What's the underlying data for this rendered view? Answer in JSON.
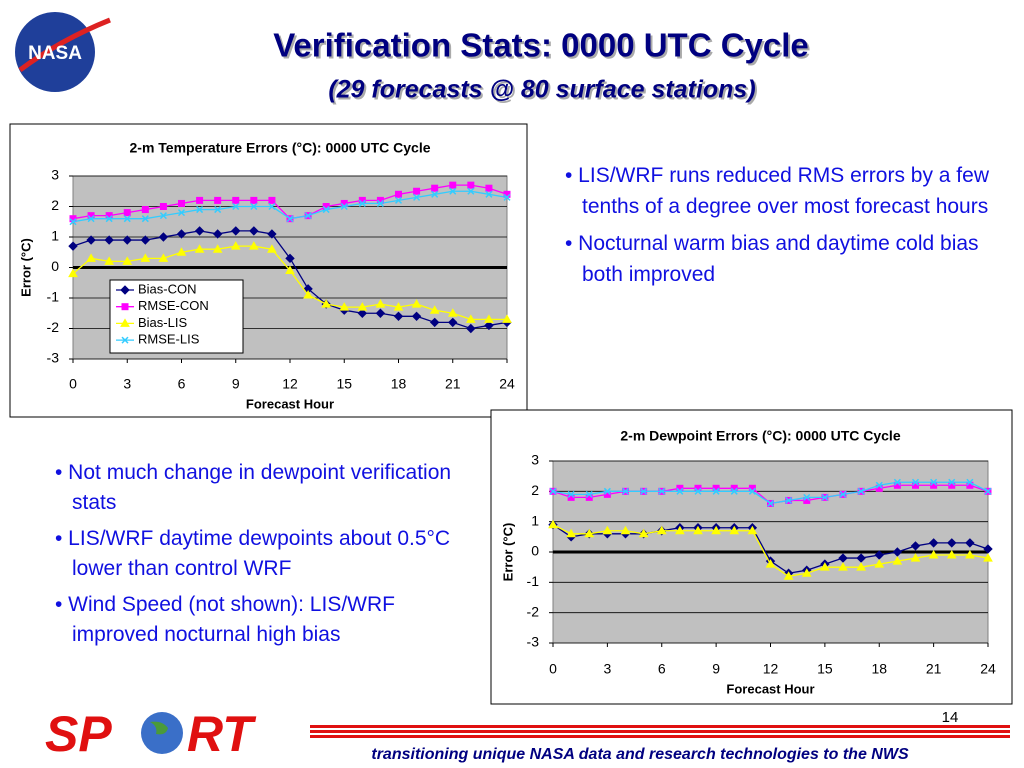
{
  "slide": {
    "nasa_logo": "NASA",
    "title": "Verification Stats: 0000 UTC Cycle",
    "subtitle": "(29 forecasts @ 80 surface stations)",
    "bullets_top": [
      "• LIS/WRF runs reduced RMS errors by a few tenths of a degree over most forecast hours",
      "• Nocturnal warm bias and daytime cold bias both improved"
    ],
    "bullets_bottom": [
      "• Not much change in dewpoint verification stats",
      "• LIS/WRF daytime dewpoints about 0.5°C lower than control WRF",
      "• Wind Speed (not shown): LIS/WRF improved nocturnal high bias"
    ],
    "page_number": "14",
    "sport_logo": [
      "SP",
      "RT"
    ],
    "footer": "transitioning unique NASA data and research technologies to the NWS"
  },
  "chart_data": [
    {
      "type": "line",
      "title": "2-m Temperature Errors (°C): 0000 UTC Cycle",
      "x_label": "Forecast Hour",
      "y_label": "Error (°C)",
      "x": [
        0,
        1,
        2,
        3,
        4,
        5,
        6,
        7,
        8,
        9,
        10,
        11,
        12,
        13,
        14,
        15,
        16,
        17,
        18,
        19,
        20,
        21,
        22,
        23,
        24
      ],
      "xlim": [
        0,
        24
      ],
      "xticks": [
        0,
        3,
        6,
        9,
        12,
        15,
        18,
        21,
        24
      ],
      "ylim": [
        -3,
        3
      ],
      "yticks": [
        -3,
        -2,
        -1,
        0,
        1,
        2,
        3
      ],
      "grid": true,
      "legend": "lower left",
      "series": [
        {
          "name": "Bias-CON",
          "color": "#000080",
          "marker": "diamond",
          "values": [
            0.7,
            0.9,
            0.9,
            0.9,
            0.9,
            1.0,
            1.1,
            1.2,
            1.1,
            1.2,
            1.2,
            1.1,
            0.3,
            -0.7,
            -1.2,
            -1.4,
            -1.5,
            -1.5,
            -1.6,
            -1.6,
            -1.8,
            -1.8,
            -2.0,
            -1.9,
            -1.8
          ]
        },
        {
          "name": "RMSE-CON",
          "color": "#ff00ff",
          "marker": "square",
          "values": [
            1.6,
            1.7,
            1.7,
            1.8,
            1.9,
            2.0,
            2.1,
            2.2,
            2.2,
            2.2,
            2.2,
            2.2,
            1.6,
            1.7,
            2.0,
            2.1,
            2.2,
            2.2,
            2.4,
            2.5,
            2.6,
            2.7,
            2.7,
            2.6,
            2.4
          ]
        },
        {
          "name": "Bias-LIS",
          "color": "#ffff00",
          "marker": "triangle",
          "values": [
            -0.2,
            0.3,
            0.2,
            0.2,
            0.3,
            0.3,
            0.5,
            0.6,
            0.6,
            0.7,
            0.7,
            0.6,
            -0.1,
            -0.9,
            -1.2,
            -1.3,
            -1.3,
            -1.2,
            -1.3,
            -1.2,
            -1.4,
            -1.5,
            -1.7,
            -1.7,
            -1.7
          ]
        },
        {
          "name": "RMSE-LIS",
          "color": "#33ccff",
          "marker": "x",
          "values": [
            1.5,
            1.6,
            1.6,
            1.6,
            1.6,
            1.7,
            1.8,
            1.9,
            1.9,
            2.0,
            2.0,
            2.0,
            1.6,
            1.7,
            1.9,
            2.0,
            2.1,
            2.1,
            2.2,
            2.3,
            2.4,
            2.5,
            2.5,
            2.4,
            2.3
          ]
        }
      ]
    },
    {
      "type": "line",
      "title": "2-m Dewpoint Errors (°C): 0000 UTC Cycle",
      "x_label": "Forecast Hour",
      "y_label": "Error (°C)",
      "x": [
        0,
        1,
        2,
        3,
        4,
        5,
        6,
        7,
        8,
        9,
        10,
        11,
        12,
        13,
        14,
        15,
        16,
        17,
        18,
        19,
        20,
        21,
        22,
        23,
        24
      ],
      "xlim": [
        0,
        24
      ],
      "xticks": [
        0,
        3,
        6,
        9,
        12,
        15,
        18,
        21,
        24
      ],
      "ylim": [
        -3,
        3
      ],
      "yticks": [
        -3,
        -2,
        -1,
        0,
        1,
        2,
        3
      ],
      "grid": true,
      "series": [
        {
          "color": "#000080",
          "marker": "diamond",
          "values": [
            0.9,
            0.5,
            0.6,
            0.6,
            0.6,
            0.6,
            0.7,
            0.8,
            0.8,
            0.8,
            0.8,
            0.8,
            -0.3,
            -0.7,
            -0.6,
            -0.4,
            -0.2,
            -0.2,
            -0.1,
            0.0,
            0.2,
            0.3,
            0.3,
            0.3,
            0.1
          ]
        },
        {
          "color": "#ff00ff",
          "marker": "square",
          "values": [
            2.0,
            1.8,
            1.8,
            1.9,
            2.0,
            2.0,
            2.0,
            2.1,
            2.1,
            2.1,
            2.1,
            2.1,
            1.6,
            1.7,
            1.7,
            1.8,
            1.9,
            2.0,
            2.1,
            2.2,
            2.2,
            2.2,
            2.2,
            2.2,
            2.0
          ]
        },
        {
          "color": "#ffff00",
          "marker": "triangle",
          "values": [
            0.9,
            0.6,
            0.6,
            0.7,
            0.7,
            0.6,
            0.7,
            0.7,
            0.7,
            0.7,
            0.7,
            0.7,
            -0.4,
            -0.8,
            -0.7,
            -0.5,
            -0.5,
            -0.5,
            -0.4,
            -0.3,
            -0.2,
            -0.1,
            -0.1,
            -0.1,
            -0.2
          ]
        },
        {
          "color": "#33ccff",
          "marker": "x",
          "values": [
            2.0,
            1.9,
            1.9,
            2.0,
            2.0,
            2.0,
            2.0,
            2.0,
            2.0,
            2.0,
            2.0,
            2.0,
            1.6,
            1.7,
            1.8,
            1.8,
            1.9,
            2.0,
            2.2,
            2.3,
            2.3,
            2.3,
            2.3,
            2.3,
            2.0
          ]
        }
      ]
    }
  ]
}
